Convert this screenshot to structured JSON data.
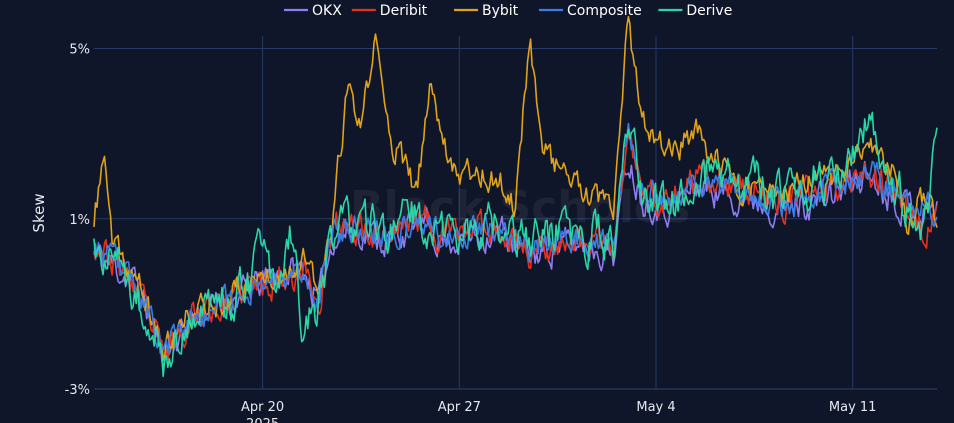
{
  "chart_data": {
    "type": "line",
    "title": "",
    "xlabel": "",
    "ylabel": "Skew",
    "x_range": [
      "2025-04-14",
      "2025-05-14"
    ],
    "ylim": [
      -3,
      6
    ],
    "y_ticks": [
      {
        "value": 5,
        "label": "5%"
      },
      {
        "value": 1,
        "label": "1%"
      },
      {
        "value": -3,
        "label": "-3%"
      }
    ],
    "x_ticks": [
      {
        "date": "2025-04-20",
        "label": "Apr 20",
        "sublabel": "2025"
      },
      {
        "date": "2025-04-27",
        "label": "Apr 27",
        "sublabel": ""
      },
      {
        "date": "2025-05-04",
        "label": "May 4",
        "sublabel": ""
      },
      {
        "date": "2025-05-11",
        "label": "May 11",
        "sublabel": ""
      }
    ],
    "grid": true,
    "legend_position": "top-center",
    "watermark": "Block Scholes",
    "series": [
      {
        "name": "OKX",
        "color": "#8e7cf0",
        "width": 1.6,
        "amp": 0.32,
        "seed": 11,
        "points": [
          [
            "2025-04-14T00:00",
            0.2
          ],
          [
            "2025-04-15T12:00",
            -0.5
          ],
          [
            "2025-04-16T12:00",
            -2.2
          ],
          [
            "2025-04-17T12:00",
            -1.3
          ],
          [
            "2025-04-18T12:00",
            -1.0
          ],
          [
            "2025-04-19T12:00",
            -0.7
          ],
          [
            "2025-04-20T12:00",
            -0.3
          ],
          [
            "2025-04-21T12:00",
            -0.2
          ],
          [
            "2025-04-22T00:00",
            -1.0
          ],
          [
            "2025-04-22T12:00",
            0.6
          ],
          [
            "2025-04-23T12:00",
            0.7
          ],
          [
            "2025-04-24T12:00",
            0.5
          ],
          [
            "2025-04-25T12:00",
            0.9
          ],
          [
            "2025-04-26T12:00",
            0.5
          ],
          [
            "2025-04-27T12:00",
            0.6
          ],
          [
            "2025-04-28T12:00",
            0.7
          ],
          [
            "2025-04-29T12:00",
            0.1
          ],
          [
            "2025-04-30T12:00",
            0.4
          ],
          [
            "2025-05-01T12:00",
            0.4
          ],
          [
            "2025-05-02T12:00",
            0.2
          ],
          [
            "2025-05-03T00:00",
            2.5
          ],
          [
            "2025-05-03T12:00",
            1.5
          ],
          [
            "2025-05-04T12:00",
            1.3
          ],
          [
            "2025-05-05T12:00",
            1.8
          ],
          [
            "2025-05-06T12:00",
            1.6
          ],
          [
            "2025-05-07T12:00",
            1.5
          ],
          [
            "2025-05-08T12:00",
            1.3
          ],
          [
            "2025-05-09T12:00",
            1.4
          ],
          [
            "2025-05-10T12:00",
            1.6
          ],
          [
            "2025-05-11T12:00",
            2.1
          ],
          [
            "2025-05-12T12:00",
            1.5
          ],
          [
            "2025-05-13T12:00",
            1.2
          ],
          [
            "2025-05-14T00:00",
            1.4
          ]
        ]
      },
      {
        "name": "Deribit",
        "color": "#e8301e",
        "width": 1.6,
        "amp": 0.32,
        "seed": 23,
        "points": [
          [
            "2025-04-14T00:00",
            0.5
          ],
          [
            "2025-04-15T12:00",
            -0.6
          ],
          [
            "2025-04-16T12:00",
            -2.3
          ],
          [
            "2025-04-17T12:00",
            -1.2
          ],
          [
            "2025-04-18T12:00",
            -1.1
          ],
          [
            "2025-04-19T12:00",
            -0.6
          ],
          [
            "2025-04-20T12:00",
            -0.4
          ],
          [
            "2025-04-21T12:00",
            -0.2
          ],
          [
            "2025-04-22T00:00",
            -1.0
          ],
          [
            "2025-04-22T12:00",
            0.7
          ],
          [
            "2025-04-23T12:00",
            0.8
          ],
          [
            "2025-04-24T12:00",
            0.6
          ],
          [
            "2025-04-25T12:00",
            1.1
          ],
          [
            "2025-04-26T12:00",
            0.6
          ],
          [
            "2025-04-27T12:00",
            0.8
          ],
          [
            "2025-04-28T12:00",
            0.8
          ],
          [
            "2025-04-29T12:00",
            0.2
          ],
          [
            "2025-04-30T12:00",
            0.5
          ],
          [
            "2025-05-01T12:00",
            0.5
          ],
          [
            "2025-05-02T12:00",
            0.3
          ],
          [
            "2025-05-03T00:00",
            3.0
          ],
          [
            "2025-05-03T12:00",
            1.6
          ],
          [
            "2025-05-04T12:00",
            1.4
          ],
          [
            "2025-05-05T12:00",
            1.9
          ],
          [
            "2025-05-06T12:00",
            1.7
          ],
          [
            "2025-05-07T12:00",
            1.7
          ],
          [
            "2025-05-08T12:00",
            1.4
          ],
          [
            "2025-05-09T12:00",
            1.6
          ],
          [
            "2025-05-10T12:00",
            1.9
          ],
          [
            "2025-05-11T12:00",
            2.2
          ],
          [
            "2025-05-12T12:00",
            1.6
          ],
          [
            "2025-05-13T12:00",
            0.8
          ],
          [
            "2025-05-14T00:00",
            1.0
          ]
        ]
      },
      {
        "name": "Bybit",
        "color": "#e0a21a",
        "width": 1.6,
        "amp": 0.28,
        "seed": 37,
        "points": [
          [
            "2025-04-14T00:00",
            0.8
          ],
          [
            "2025-04-14T08:00",
            2.6
          ],
          [
            "2025-04-14T16:00",
            0.3
          ],
          [
            "2025-04-15T12:00",
            -0.4
          ],
          [
            "2025-04-16T12:00",
            -2.1
          ],
          [
            "2025-04-17T12:00",
            -1.2
          ],
          [
            "2025-04-18T12:00",
            -0.9
          ],
          [
            "2025-04-19T12:00",
            -0.5
          ],
          [
            "2025-04-20T12:00",
            -0.2
          ],
          [
            "2025-04-21T12:00",
            0.0
          ],
          [
            "2025-04-22T00:00",
            -0.8
          ],
          [
            "2025-04-22T12:00",
            1.0
          ],
          [
            "2025-04-23T00:00",
            4.0
          ],
          [
            "2025-04-23T12:00",
            3.1
          ],
          [
            "2025-04-24T00:00",
            5.2
          ],
          [
            "2025-04-24T12:00",
            3.0
          ],
          [
            "2025-04-25T12:00",
            1.6
          ],
          [
            "2025-04-26T00:00",
            4.3
          ],
          [
            "2025-04-26T12:00",
            2.7
          ],
          [
            "2025-04-27T00:00",
            2.1
          ],
          [
            "2025-04-27T12:00",
            2.2
          ],
          [
            "2025-04-28T12:00",
            1.8
          ],
          [
            "2025-04-29T00:00",
            1.3
          ],
          [
            "2025-04-29T12:00",
            5.3
          ],
          [
            "2025-04-30T00:00",
            2.6
          ],
          [
            "2025-04-30T12:00",
            2.3
          ],
          [
            "2025-05-01T12:00",
            1.5
          ],
          [
            "2025-05-02T12:00",
            1.2
          ],
          [
            "2025-05-03T00:00",
            5.6
          ],
          [
            "2025-05-03T12:00",
            3.2
          ],
          [
            "2025-05-04T12:00",
            2.6
          ],
          [
            "2025-05-05T12:00",
            3.0
          ],
          [
            "2025-05-06T12:00",
            2.0
          ],
          [
            "2025-05-07T12:00",
            1.7
          ],
          [
            "2025-05-08T12:00",
            1.5
          ],
          [
            "2025-05-09T12:00",
            1.9
          ],
          [
            "2025-05-10T12:00",
            2.0
          ],
          [
            "2025-05-11T12:00",
            2.7
          ],
          [
            "2025-05-12T12:00",
            2.0
          ],
          [
            "2025-05-13T00:00",
            0.9
          ],
          [
            "2025-05-13T12:00",
            1.5
          ],
          [
            "2025-05-14T00:00",
            1.2
          ]
        ]
      },
      {
        "name": "Composite",
        "color": "#3b7de3",
        "width": 1.6,
        "amp": 0.28,
        "seed": 53,
        "points": [
          [
            "2025-04-14T00:00",
            0.4
          ],
          [
            "2025-04-15T12:00",
            -0.5
          ],
          [
            "2025-04-16T12:00",
            -2.2
          ],
          [
            "2025-04-17T12:00",
            -1.3
          ],
          [
            "2025-04-18T12:00",
            -1.0
          ],
          [
            "2025-04-19T12:00",
            -0.6
          ],
          [
            "2025-04-20T12:00",
            -0.3
          ],
          [
            "2025-04-21T12:00",
            -0.2
          ],
          [
            "2025-04-22T00:00",
            -1.0
          ],
          [
            "2025-04-22T12:00",
            0.7
          ],
          [
            "2025-04-23T12:00",
            0.8
          ],
          [
            "2025-04-24T12:00",
            0.6
          ],
          [
            "2025-04-25T12:00",
            1.0
          ],
          [
            "2025-04-26T12:00",
            0.6
          ],
          [
            "2025-04-27T12:00",
            0.7
          ],
          [
            "2025-04-28T12:00",
            0.8
          ],
          [
            "2025-04-29T12:00",
            0.2
          ],
          [
            "2025-04-30T12:00",
            0.5
          ],
          [
            "2025-05-01T12:00",
            0.5
          ],
          [
            "2025-05-02T12:00",
            0.3
          ],
          [
            "2025-05-03T00:00",
            3.2
          ],
          [
            "2025-05-03T12:00",
            1.6
          ],
          [
            "2025-05-04T12:00",
            1.4
          ],
          [
            "2025-05-05T12:00",
            1.9
          ],
          [
            "2025-05-06T12:00",
            1.7
          ],
          [
            "2025-05-07T12:00",
            1.6
          ],
          [
            "2025-05-08T12:00",
            1.4
          ],
          [
            "2025-05-09T12:00",
            1.5
          ],
          [
            "2025-05-10T12:00",
            1.8
          ],
          [
            "2025-05-11T12:00",
            2.2
          ],
          [
            "2025-05-12T12:00",
            1.6
          ],
          [
            "2025-05-13T12:00",
            1.2
          ],
          [
            "2025-05-14T00:00",
            1.3
          ]
        ]
      },
      {
        "name": "Derive",
        "color": "#2ad6a6",
        "width": 1.6,
        "amp": 0.45,
        "seed": 71,
        "points": [
          [
            "2025-04-14T00:00",
            0.3
          ],
          [
            "2025-04-15T12:00",
            -0.6
          ],
          [
            "2025-04-16T12:00",
            -2.5
          ],
          [
            "2025-04-17T12:00",
            -1.2
          ],
          [
            "2025-04-18T12:00",
            -1.1
          ],
          [
            "2025-04-19T12:00",
            -0.6
          ],
          [
            "2025-04-20T00:00",
            0.3
          ],
          [
            "2025-04-20T12:00",
            -0.8
          ],
          [
            "2025-04-21T00:00",
            0.9
          ],
          [
            "2025-04-21T12:00",
            -1.8
          ],
          [
            "2025-04-22T00:00",
            -0.9
          ],
          [
            "2025-04-22T12:00",
            0.8
          ],
          [
            "2025-04-23T12:00",
            0.9
          ],
          [
            "2025-04-24T12:00",
            0.6
          ],
          [
            "2025-04-25T12:00",
            1.1
          ],
          [
            "2025-04-26T12:00",
            0.6
          ],
          [
            "2025-04-27T12:00",
            0.9
          ],
          [
            "2025-04-28T12:00",
            0.8
          ],
          [
            "2025-04-29T12:00",
            0.3
          ],
          [
            "2025-04-30T12:00",
            0.6
          ],
          [
            "2025-05-01T12:00",
            0.6
          ],
          [
            "2025-05-02T12:00",
            0.5
          ],
          [
            "2025-05-03T00:00",
            3.4
          ],
          [
            "2025-05-03T12:00",
            1.7
          ],
          [
            "2025-05-04T12:00",
            1.2
          ],
          [
            "2025-05-05T12:00",
            2.1
          ],
          [
            "2025-05-06T12:00",
            1.8
          ],
          [
            "2025-05-07T12:00",
            1.8
          ],
          [
            "2025-05-08T12:00",
            1.5
          ],
          [
            "2025-05-09T12:00",
            1.7
          ],
          [
            "2025-05-10T12:00",
            2.2
          ],
          [
            "2025-05-11T12:00",
            3.2
          ],
          [
            "2025-05-12T12:00",
            1.9
          ],
          [
            "2025-05-13T12:00",
            0.5
          ],
          [
            "2025-05-14T00:00",
            3.1
          ]
        ]
      }
    ]
  }
}
